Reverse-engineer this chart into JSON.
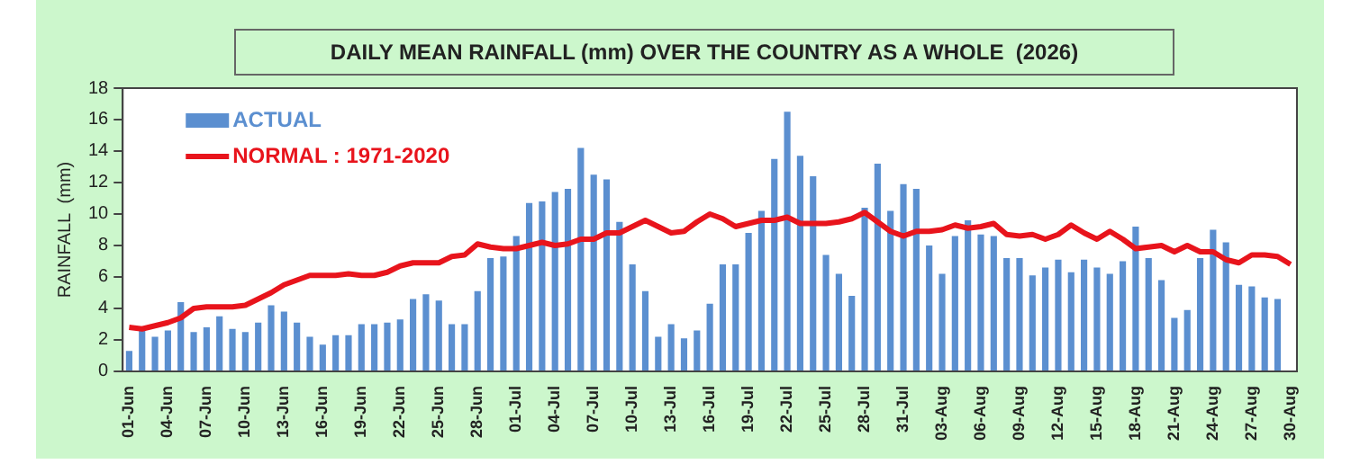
{
  "chart_data": {
    "type": "bar",
    "title": "DAILY MEAN RAINFALL (mm) OVER THE COUNTRY AS A WHOLE  (2026)",
    "ylabel": "RAINFALL  (mm)",
    "categories": [
      "01-Jun",
      null,
      null,
      "04-Jun",
      null,
      null,
      "07-Jun",
      null,
      null,
      "10-Jun",
      null,
      null,
      "13-Jun",
      null,
      null,
      "16-Jun",
      null,
      null,
      "19-Jun",
      null,
      null,
      "22-Jun",
      null,
      null,
      "25-Jun",
      null,
      null,
      "28-Jun",
      null,
      null,
      "01-Jul",
      null,
      null,
      "04-Jul",
      null,
      null,
      "07-Jul",
      null,
      null,
      "10-Jul",
      null,
      null,
      "13-Jul",
      null,
      null,
      "16-Jul",
      null,
      null,
      "19-Jul",
      null,
      null,
      "22-Jul",
      null,
      null,
      "25-Jul",
      null,
      null,
      "28-Jul",
      null,
      null,
      "31-Jul",
      null,
      null,
      "03-Aug",
      null,
      null,
      "06-Aug",
      null,
      null,
      "09-Aug",
      null,
      null,
      "12-Aug",
      null,
      null,
      "15-Aug",
      null,
      null,
      "18-Aug",
      null,
      null,
      "21-Aug",
      null,
      null,
      "24-Aug",
      null,
      null,
      "27-Aug",
      null,
      null,
      "30-Aug"
    ],
    "series": [
      {
        "name": "ACTUAL",
        "color": "#5b8fd0",
        "values": [
          1.3,
          2.6,
          2.2,
          2.6,
          4.4,
          2.5,
          2.8,
          3.5,
          2.7,
          2.5,
          3.1,
          4.2,
          3.8,
          3.1,
          2.2,
          1.7,
          2.3,
          2.3,
          3.0,
          3.0,
          3.1,
          3.3,
          4.6,
          4.9,
          4.5,
          3.0,
          3.0,
          5.1,
          7.2,
          7.3,
          8.6,
          10.7,
          10.8,
          11.4,
          11.6,
          14.2,
          12.5,
          12.2,
          9.5,
          6.8,
          5.1,
          2.2,
          3.0,
          2.1,
          2.6,
          4.3,
          6.8,
          6.8,
          8.8,
          10.2,
          13.5,
          16.5,
          13.7,
          12.4,
          7.4,
          6.2,
          4.8,
          10.4,
          13.2,
          10.2,
          11.9,
          11.6,
          8.0,
          6.2,
          8.6,
          9.6,
          8.7,
          8.6,
          7.2,
          7.2,
          6.1,
          6.6,
          7.1,
          6.3,
          7.1,
          6.6,
          6.2,
          7.0,
          9.2,
          7.2,
          5.8,
          3.4,
          3.9,
          7.2,
          9.0,
          8.2,
          5.5,
          5.4,
          4.7,
          4.6,
          null
        ]
      },
      {
        "name": "NORMAL : 1971-2020",
        "type": "line",
        "color": "#e8141c",
        "values": [
          2.8,
          2.7,
          2.9,
          3.1,
          3.4,
          4.0,
          4.1,
          4.1,
          4.1,
          4.2,
          4.6,
          5.0,
          5.5,
          5.8,
          6.1,
          6.1,
          6.1,
          6.2,
          6.1,
          6.1,
          6.3,
          6.7,
          6.9,
          6.9,
          6.9,
          7.3,
          7.4,
          8.1,
          7.9,
          7.8,
          7.8,
          8.0,
          8.2,
          8.0,
          8.1,
          8.4,
          8.4,
          8.8,
          8.8,
          9.2,
          9.6,
          9.2,
          8.8,
          8.9,
          9.5,
          10.0,
          9.7,
          9.2,
          9.4,
          9.6,
          9.6,
          9.8,
          9.4,
          9.4,
          9.4,
          9.5,
          9.7,
          10.1,
          9.5,
          8.9,
          8.6,
          8.9,
          8.9,
          9.0,
          9.3,
          9.1,
          9.2,
          9.4,
          8.7,
          8.6,
          8.7,
          8.4,
          8.7,
          9.3,
          8.8,
          8.4,
          8.9,
          8.4,
          7.8,
          7.9,
          8.0,
          7.6,
          8.0,
          7.6,
          7.6,
          7.1,
          6.9,
          7.4,
          7.4,
          7.3,
          6.8
        ]
      }
    ],
    "ylim": [
      0,
      18
    ],
    "yticks": [
      0,
      2,
      4,
      6,
      8,
      10,
      12,
      14,
      16,
      18
    ],
    "grid": false,
    "legend": "top left",
    "marker": "none",
    "line_style": "solid"
  }
}
